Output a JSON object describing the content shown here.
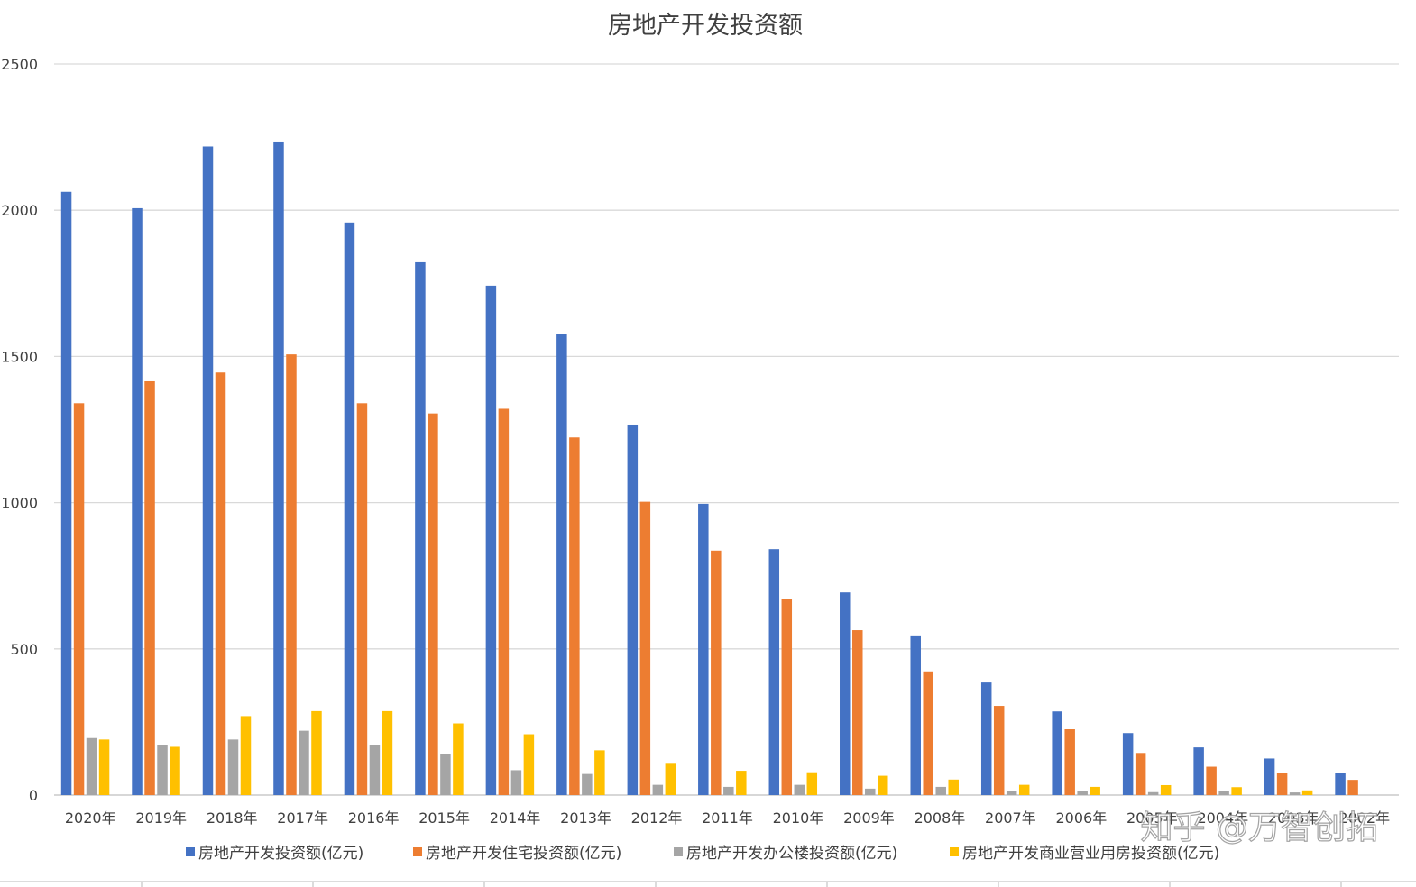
{
  "chart_data": {
    "type": "bar",
    "title": "房地产开发投资额",
    "xlabel": "",
    "ylabel": "",
    "ylim": [
      0,
      2500
    ],
    "yticks": [
      0,
      500,
      1000,
      1500,
      2000,
      2500
    ],
    "grid": true,
    "legend_position": "bottom",
    "categories": [
      "2020年",
      "2019年",
      "2018年",
      "2017年",
      "2016年",
      "2015年",
      "2014年",
      "2013年",
      "2012年",
      "2011年",
      "2010年",
      "2009年",
      "2008年",
      "2007年",
      "2006年",
      "2005年",
      "2004年",
      "2003年",
      "2002年"
    ],
    "series": [
      {
        "name": "房地产开发投资额(亿元)",
        "color": "#4472C4",
        "values": [
          2063,
          2007,
          2218,
          2235,
          1958,
          1822,
          1742,
          1576,
          1267,
          996,
          841,
          693,
          546,
          385,
          286,
          212,
          163,
          125,
          77
        ]
      },
      {
        "name": "房地产开发住宅投资额(亿元)",
        "color": "#ED7D31",
        "values": [
          1340,
          1415,
          1445,
          1507,
          1340,
          1305,
          1321,
          1223,
          1003,
          836,
          669,
          564,
          423,
          305,
          225,
          144,
          97,
          76,
          52
        ]
      },
      {
        "name": "房地产开发办公楼投资额(亿元)",
        "color": "#A5A5A5",
        "values": [
          195,
          170,
          190,
          220,
          170,
          140,
          85,
          72,
          35,
          28,
          35,
          22,
          28,
          15,
          14,
          10,
          14,
          9,
          0
        ]
      },
      {
        "name": "房地产开发商业营业用房投资额(亿元)",
        "color": "#FFC000",
        "values": [
          190,
          165,
          270,
          287,
          287,
          245,
          208,
          153,
          110,
          83,
          78,
          66,
          53,
          35,
          28,
          34,
          27,
          16,
          0
        ]
      }
    ]
  },
  "watermark": "知乎 @万智创拓"
}
